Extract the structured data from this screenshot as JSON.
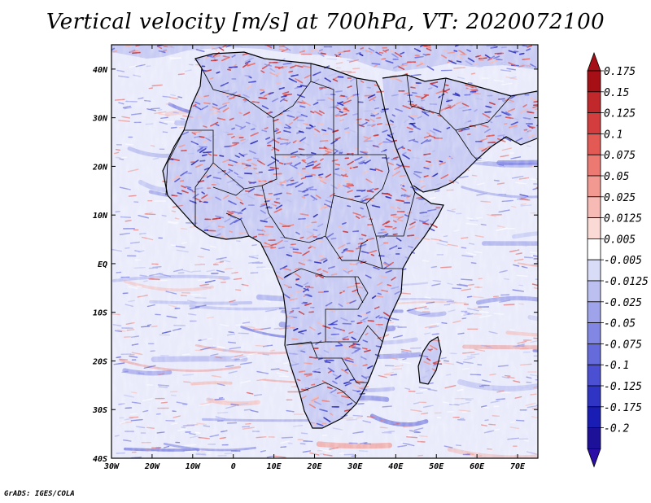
{
  "title": "Vertical velocity [m/s] at 700hPa, VT: 2020072100",
  "credit": "GrADS: IGES/COLA",
  "map": {
    "projection": "latlon",
    "lon_range": [
      -30,
      75
    ],
    "lat_range": [
      -40,
      45
    ],
    "lon_ticks": [
      "30W",
      "20W",
      "10W",
      "0",
      "10E",
      "20E",
      "30E",
      "40E",
      "50E",
      "60E",
      "70E"
    ],
    "lon_tick_values": [
      -30,
      -20,
      -10,
      0,
      10,
      20,
      30,
      40,
      50,
      60,
      70
    ],
    "lat_ticks": [
      "40N",
      "30N",
      "20N",
      "10N",
      "EQ",
      "10S",
      "20S",
      "30S",
      "40S"
    ],
    "lat_tick_values": [
      40,
      30,
      20,
      10,
      0,
      -10,
      -20,
      -30,
      -40
    ],
    "field": "vertical velocity",
    "level": "700hPa",
    "valid_time": "2020072100"
  },
  "colorbar": {
    "labels": [
      "0.175",
      "0.15",
      "0.125",
      "0.1",
      "0.075",
      "0.05",
      "0.025",
      "0.0125",
      "0.005",
      "-0.005",
      "-0.0125",
      "-0.025",
      "-0.05",
      "-0.075",
      "-0.1",
      "-0.125",
      "-0.175",
      "-0.2"
    ],
    "colors": [
      "#a50f15",
      "#c0282c",
      "#d43d3d",
      "#e35a55",
      "#ec7a72",
      "#f29a92",
      "#f7bab4",
      "#fbd9d5",
      "#ffffff",
      "#d9dcf6",
      "#bcc0f0",
      "#9ea3ea",
      "#8287e3",
      "#666bdb",
      "#4b4fd1",
      "#3034c4",
      "#1a1db3",
      "#1d1099"
    ],
    "top_arrow_color": "#a50f15",
    "bottom_arrow_color": "#2b0fa6"
  },
  "colors": {
    "ocean_base": "#e9ebfb",
    "land_base": "#c8cbf3",
    "upward_strong": "#d8343a",
    "downward_strong": "#4446d2",
    "coast": "#000000"
  }
}
